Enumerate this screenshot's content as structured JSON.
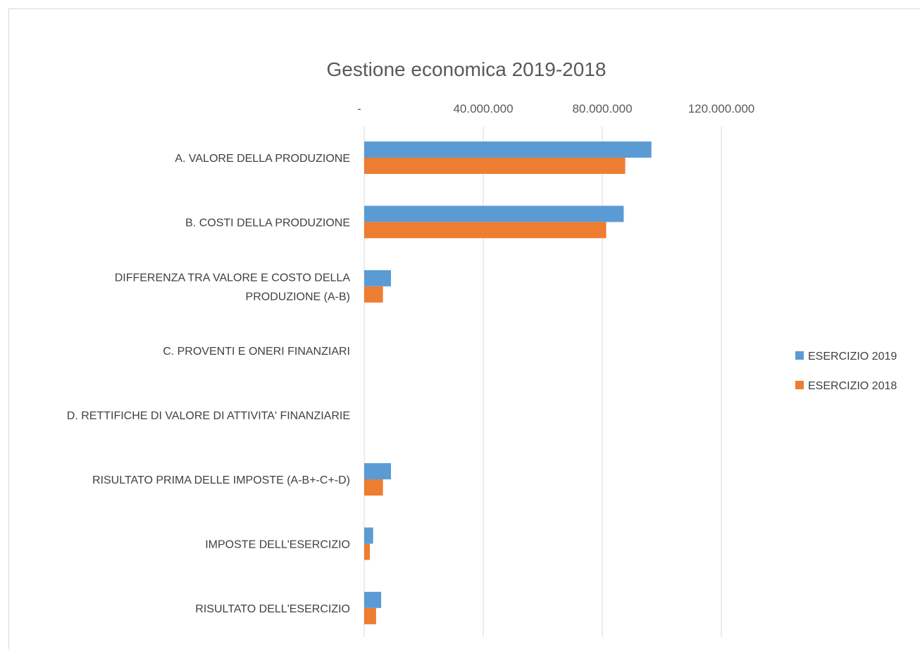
{
  "chart_data": {
    "type": "bar",
    "orientation": "horizontal",
    "title": "Gestione economica 2019-2018",
    "xlabel": "",
    "ylabel": "",
    "xlim": [
      0,
      160000000
    ],
    "xticks": [
      0,
      40000000,
      80000000,
      120000000
    ],
    "xtick_labels": [
      "-",
      "40.000.000",
      "80.000.000",
      "120.000.000"
    ],
    "grid": true,
    "legend_position": "right",
    "categories": [
      "A. VALORE DELLA PRODUZIONE",
      "B. COSTI DELLA PRODUZIONE",
      "DIFFERENZA TRA VALORE E COSTO DELLA PRODUZIONE (A-B)",
      "C. PROVENTI E ONERI FINANZIARI",
      "D. RETTIFICHE DI VALORE DI ATTIVITA' FINANZIARIE",
      "RISULTATO PRIMA DELLE IMPOSTE (A-B+-C+-D)",
      "IMPOSTE DELL'ESERCIZIO",
      "RISULTATO DELL'ESERCIZIO"
    ],
    "category_lines": [
      [
        "A. VALORE DELLA PRODUZIONE"
      ],
      [
        "B. COSTI DELLA PRODUZIONE"
      ],
      [
        "DIFFERENZA TRA VALORE E COSTO DELLA",
        "PRODUZIONE (A-B)"
      ],
      [
        "C. PROVENTI E ONERI FINANZIARI"
      ],
      [
        "D. RETTIFICHE DI VALORE DI ATTIVITA' FINANZIARIE"
      ],
      [
        "RISULTATO PRIMA DELLE IMPOSTE (A-B+-C+-D)"
      ],
      [
        "IMPOSTE DELL'ESERCIZIO"
      ],
      [
        "RISULTATO DELL'ESERCIZIO"
      ]
    ],
    "series": [
      {
        "name": "ESERCIZIO 2019",
        "color": "#5b9bd5",
        "values": [
          96500000,
          87200000,
          9000000,
          0,
          0,
          9000000,
          3000000,
          5700000
        ]
      },
      {
        "name": "ESERCIZIO 2018",
        "color": "#ed7d31",
        "values": [
          87700000,
          81300000,
          6300000,
          0,
          0,
          6300000,
          1900000,
          4000000
        ]
      }
    ]
  }
}
